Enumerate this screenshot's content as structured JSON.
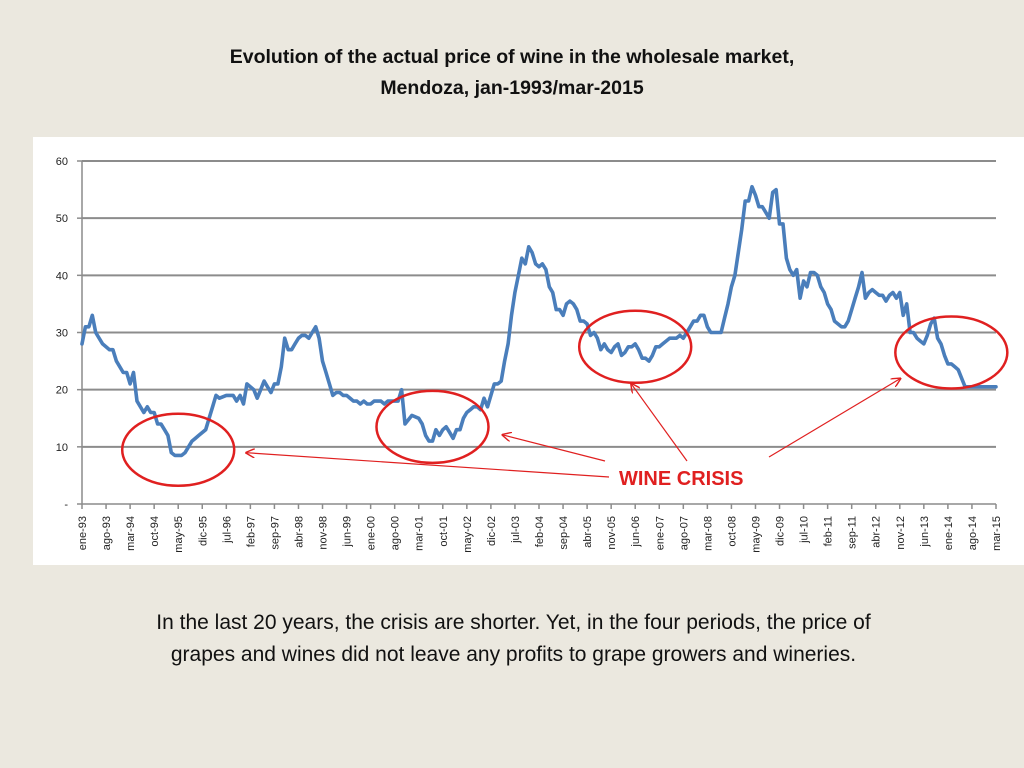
{
  "title": {
    "line1": "Evolution of the actual price of wine in the wholesale market,",
    "line2": "Mendoza, jan-1993/mar-2015"
  },
  "caption": {
    "line1": "In the last 20 years, the crisis are shorter. Yet, in the four periods, the price of",
    "line2": "grapes and wines did not leave any profits to grape growers and  wineries."
  },
  "colors": {
    "line": "#4a7ebb",
    "annotation": "#e02020",
    "grid": "#8c8c8c"
  },
  "chart_data": {
    "type": "line",
    "title": "Evolution of the actual price of wine in the wholesale market, Mendoza, jan-1993/mar-2015",
    "xlabel": "",
    "ylabel": "",
    "ylim": [
      0,
      60
    ],
    "yticks": [
      0,
      10,
      20,
      30,
      40,
      50,
      60
    ],
    "ytick_labels": [
      "-",
      "10",
      "20",
      "30",
      "40",
      "50",
      "60"
    ],
    "grid": true,
    "x_start": "ene-93",
    "x_end": "mar-15",
    "xtick_labels": [
      "ene-93",
      "ago-93",
      "mar-94",
      "oct-94",
      "may-95",
      "dic-95",
      "jul-96",
      "feb-97",
      "sep-97",
      "abr-98",
      "nov-98",
      "jun-99",
      "ene-00",
      "ago-00",
      "mar-01",
      "oct-01",
      "may-02",
      "dic-02",
      "jul-03",
      "feb-04",
      "sep-04",
      "abr-05",
      "nov-05",
      "jun-06",
      "ene-07",
      "ago-07",
      "mar-08",
      "oct-08",
      "may-09",
      "dic-09",
      "jul-10",
      "feb-11",
      "sep-11",
      "abr-12",
      "nov-12",
      "jun-13",
      "ene-14",
      "ago-14",
      "mar-15"
    ],
    "series": [
      {
        "name": "Actual price of wine",
        "points": [
          [
            0,
            28
          ],
          [
            1,
            31
          ],
          [
            2,
            31
          ],
          [
            3,
            33
          ],
          [
            4,
            30
          ],
          [
            6,
            28
          ],
          [
            8,
            27
          ],
          [
            9,
            27
          ],
          [
            10,
            25
          ],
          [
            12,
            23
          ],
          [
            13,
            23
          ],
          [
            14,
            21
          ],
          [
            15,
            23
          ],
          [
            16,
            18
          ],
          [
            18,
            16
          ],
          [
            19,
            17
          ],
          [
            20,
            16
          ],
          [
            21,
            16
          ],
          [
            22,
            14
          ],
          [
            23,
            14
          ],
          [
            24,
            13
          ],
          [
            25,
            12
          ],
          [
            26,
            9
          ],
          [
            27,
            8.5
          ],
          [
            28,
            8.5
          ],
          [
            29,
            8.5
          ],
          [
            30,
            9
          ],
          [
            32,
            11
          ],
          [
            33,
            11.5
          ],
          [
            34,
            12
          ],
          [
            36,
            13
          ],
          [
            37,
            15
          ],
          [
            38,
            17
          ],
          [
            39,
            19
          ],
          [
            40,
            18.5
          ],
          [
            42,
            19
          ],
          [
            44,
            19
          ],
          [
            45,
            18
          ],
          [
            46,
            19
          ],
          [
            47,
            17.5
          ],
          [
            48,
            21
          ],
          [
            50,
            20
          ],
          [
            51,
            18.5
          ],
          [
            52,
            20
          ],
          [
            53,
            21.5
          ],
          [
            54,
            20.5
          ],
          [
            55,
            19.5
          ],
          [
            56,
            21
          ],
          [
            57,
            21
          ],
          [
            58,
            24
          ],
          [
            59,
            29
          ],
          [
            60,
            27
          ],
          [
            61,
            27
          ],
          [
            62,
            28
          ],
          [
            63,
            29
          ],
          [
            64,
            29.5
          ],
          [
            65,
            29.5
          ],
          [
            66,
            29
          ],
          [
            67,
            30
          ],
          [
            68,
            31
          ],
          [
            69,
            29
          ],
          [
            70,
            25
          ],
          [
            71,
            23
          ],
          [
            72,
            21
          ],
          [
            73,
            19
          ],
          [
            74,
            19.5
          ],
          [
            75,
            19.5
          ],
          [
            76,
            19
          ],
          [
            77,
            19
          ],
          [
            78,
            18.5
          ],
          [
            79,
            18
          ],
          [
            80,
            18
          ],
          [
            81,
            17.5
          ],
          [
            82,
            18
          ],
          [
            83,
            17.5
          ],
          [
            84,
            17.5
          ],
          [
            85,
            18
          ],
          [
            86,
            18
          ],
          [
            87,
            18
          ],
          [
            88,
            17.5
          ],
          [
            89,
            18
          ],
          [
            90,
            18
          ],
          [
            91,
            18
          ],
          [
            92,
            18
          ],
          [
            93,
            20
          ],
          [
            94,
            14
          ],
          [
            96,
            15.5
          ],
          [
            98,
            15
          ],
          [
            99,
            14
          ],
          [
            100,
            12
          ],
          [
            101,
            11
          ],
          [
            102,
            11
          ],
          [
            103,
            13
          ],
          [
            104,
            12
          ],
          [
            105,
            13
          ],
          [
            106,
            13.5
          ],
          [
            107,
            12.5
          ],
          [
            108,
            11.5
          ],
          [
            109,
            13
          ],
          [
            110,
            13
          ],
          [
            111,
            15
          ],
          [
            112,
            16
          ],
          [
            113,
            16.5
          ],
          [
            114,
            17
          ],
          [
            115,
            17
          ],
          [
            116,
            16.5
          ],
          [
            117,
            18.5
          ],
          [
            118,
            17
          ],
          [
            119,
            19
          ],
          [
            120,
            21
          ],
          [
            121,
            21
          ],
          [
            122,
            21.5
          ],
          [
            123,
            25
          ],
          [
            124,
            28
          ],
          [
            125,
            33
          ],
          [
            126,
            37
          ],
          [
            127,
            40
          ],
          [
            128,
            43
          ],
          [
            129,
            42
          ],
          [
            130,
            45
          ],
          [
            131,
            44
          ],
          [
            132,
            42
          ],
          [
            133,
            41.5
          ],
          [
            134,
            42
          ],
          [
            135,
            41
          ],
          [
            136,
            38
          ],
          [
            137,
            37
          ],
          [
            138,
            34
          ],
          [
            139,
            34
          ],
          [
            140,
            33
          ],
          [
            141,
            35
          ],
          [
            142,
            35.5
          ],
          [
            143,
            35
          ],
          [
            144,
            34
          ],
          [
            145,
            32
          ],
          [
            146,
            32
          ],
          [
            147,
            31.5
          ],
          [
            148,
            29.5
          ],
          [
            149,
            30
          ],
          [
            150,
            29
          ],
          [
            151,
            27
          ],
          [
            152,
            28
          ],
          [
            153,
            27
          ],
          [
            154,
            26.5
          ],
          [
            155,
            27.5
          ],
          [
            156,
            28
          ],
          [
            157,
            26
          ],
          [
            158,
            26.5
          ],
          [
            159,
            27.5
          ],
          [
            160,
            27.5
          ],
          [
            161,
            28
          ],
          [
            162,
            27
          ],
          [
            163,
            25.5
          ],
          [
            164,
            25.5
          ],
          [
            165,
            25
          ],
          [
            166,
            26
          ],
          [
            167,
            27.5
          ],
          [
            168,
            27.5
          ],
          [
            169,
            28
          ],
          [
            170,
            28.5
          ],
          [
            171,
            29
          ],
          [
            172,
            29
          ],
          [
            173,
            29
          ],
          [
            174,
            29.5
          ],
          [
            175,
            29
          ],
          [
            176,
            30
          ],
          [
            177,
            31
          ],
          [
            178,
            32
          ],
          [
            179,
            32
          ],
          [
            180,
            33
          ],
          [
            181,
            33
          ],
          [
            182,
            31
          ],
          [
            183,
            30
          ],
          [
            184,
            30
          ],
          [
            185,
            30
          ],
          [
            186,
            30
          ],
          [
            187,
            32.5
          ],
          [
            188,
            35
          ],
          [
            189,
            38
          ],
          [
            190,
            40
          ],
          [
            191,
            44
          ],
          [
            192,
            48
          ],
          [
            193,
            53
          ],
          [
            194,
            53
          ],
          [
            195,
            55.5
          ],
          [
            196,
            54
          ],
          [
            197,
            52
          ],
          [
            198,
            52
          ],
          [
            199,
            51
          ],
          [
            200,
            50
          ],
          [
            201,
            54.5
          ],
          [
            202,
            55
          ],
          [
            203,
            49
          ],
          [
            204,
            49
          ],
          [
            205,
            43
          ],
          [
            206,
            41
          ],
          [
            207,
            40
          ],
          [
            208,
            41
          ],
          [
            209,
            36
          ],
          [
            210,
            39
          ],
          [
            211,
            38
          ],
          [
            212,
            40.5
          ],
          [
            213,
            40.5
          ],
          [
            214,
            40
          ],
          [
            215,
            38
          ],
          [
            216,
            37
          ],
          [
            217,
            35
          ],
          [
            218,
            34
          ],
          [
            219,
            32
          ],
          [
            220,
            31.5
          ],
          [
            221,
            31
          ],
          [
            222,
            31
          ],
          [
            223,
            32
          ],
          [
            224,
            34
          ],
          [
            225,
            36
          ],
          [
            226,
            38
          ],
          [
            227,
            40.5
          ],
          [
            228,
            36
          ],
          [
            229,
            37
          ],
          [
            230,
            37.5
          ],
          [
            231,
            37
          ],
          [
            232,
            36.5
          ],
          [
            233,
            36.5
          ],
          [
            234,
            35.5
          ],
          [
            235,
            36.5
          ],
          [
            236,
            37
          ],
          [
            237,
            36
          ],
          [
            238,
            37
          ],
          [
            239,
            33
          ],
          [
            240,
            35
          ],
          [
            241,
            30
          ],
          [
            242,
            30
          ],
          [
            243,
            29
          ],
          [
            244,
            28.5
          ],
          [
            245,
            28
          ],
          [
            246,
            29.5
          ],
          [
            247,
            31.5
          ],
          [
            248,
            32.5
          ],
          [
            249,
            29
          ],
          [
            250,
            28
          ],
          [
            251,
            26
          ],
          [
            252,
            24.5
          ],
          [
            253,
            24.5
          ],
          [
            254,
            24
          ],
          [
            255,
            23.5
          ],
          [
            256,
            22
          ],
          [
            257,
            20.5
          ],
          [
            266,
            20.5
          ]
        ]
      }
    ],
    "annotations": {
      "label": "WINE CRISIS",
      "circles": [
        {
          "center_month": 28,
          "center_value": 9.5
        },
        {
          "center_month": 102,
          "center_value": 13.5
        },
        {
          "center_month": 161,
          "center_value": 27.5
        },
        {
          "center_month": 253,
          "center_value": 26.5
        }
      ]
    }
  }
}
